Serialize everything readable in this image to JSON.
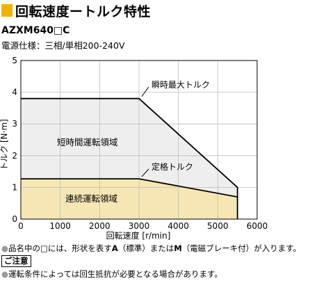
{
  "header": {
    "title": "回転速度ートルク特性",
    "model": "AZXM640□C",
    "power_spec": "電源仕様：三相/単相200-240V"
  },
  "chart_data": {
    "type": "area",
    "title": "",
    "xlabel": "回転速度 [r/min]",
    "ylabel": "トルク [N·m]",
    "xlim": [
      0,
      6000
    ],
    "ylim": [
      0,
      5
    ],
    "x_ticks": [
      "0",
      "1000",
      "2000",
      "3000",
      "4000",
      "5000",
      "6000"
    ],
    "y_ticks": [
      "0",
      "1",
      "2",
      "3",
      "4",
      "5"
    ],
    "grid": true,
    "series": [
      {
        "name": "瞬時最大トルク",
        "points": [
          [
            0,
            3.8
          ],
          [
            3000,
            3.8
          ],
          [
            5500,
            1.0
          ],
          [
            5500,
            0
          ]
        ]
      },
      {
        "name": "定格トルク",
        "points": [
          [
            0,
            1.27
          ],
          [
            3000,
            1.27
          ],
          [
            5500,
            0.7
          ]
        ]
      }
    ],
    "regions": [
      {
        "name": "短時間運転領域",
        "color": "#eeeeee"
      },
      {
        "name": "連続運転領域",
        "color": "#f6e6b4"
      }
    ]
  },
  "notes": {
    "note1_prefix": "品名中の□には、形状を表す",
    "note1_a": "A",
    "note1_mid": "（標準）または",
    "note1_m": "M",
    "note1_suffix": "（電磁ブレーキ付）が入ります。",
    "caution_label": "ご注意",
    "note2": "運転条件によっては回生抵抗が必要となる場合があります。"
  },
  "colors": {
    "accent": "#f0b400",
    "short_region": "#eeeeee",
    "continuous_region": "#f6e6b4",
    "grid": "#bdbdbd"
  }
}
